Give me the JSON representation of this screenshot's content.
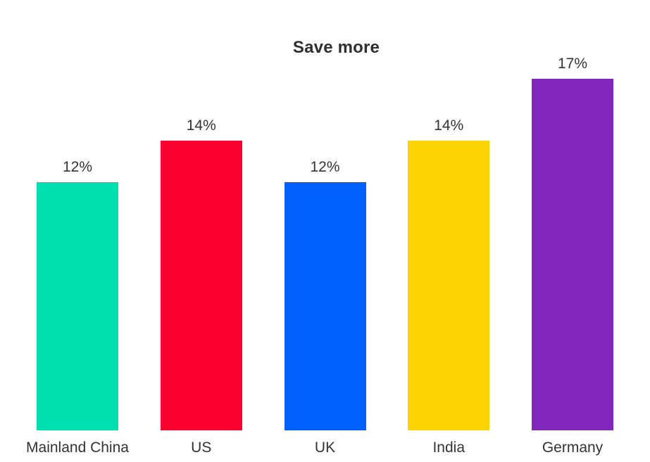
{
  "page": {
    "background": "#ffffff",
    "text_color": "#333333",
    "title_color": "#2f2f2f"
  },
  "chart_data": {
    "type": "bar",
    "title": "Save more",
    "unit": "%",
    "categories": [
      "Mainland China",
      "US",
      "UK",
      "India",
      "Germany"
    ],
    "values": [
      12,
      14,
      12,
      14,
      17
    ],
    "value_labels": [
      "12%",
      "14%",
      "12%",
      "14%",
      "17%"
    ],
    "bar_colors": [
      "#00DFB0",
      "#F90030",
      "#0061FE",
      "#FCD403",
      "#8227BE"
    ],
    "ylim": [
      0,
      17
    ],
    "xlabel": "",
    "ylabel": "",
    "grid": false,
    "legend": false,
    "data_labels_position": "above-bars",
    "category_labels_position": "below-bars"
  }
}
